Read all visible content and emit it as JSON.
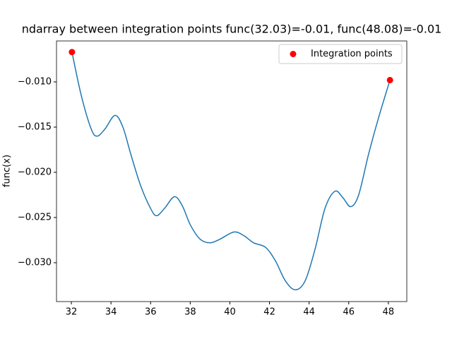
{
  "chart_data": {
    "type": "line",
    "title": "ndarray between integration points func(32.03)=-0.01, func(48.08)=-0.01",
    "y_label": "func(x)",
    "x": [
      32.03,
      32.5,
      33.0,
      33.3,
      33.7,
      34.2,
      34.6,
      35.0,
      35.5,
      36.0,
      36.3,
      36.7,
      37.2,
      37.6,
      38.0,
      38.5,
      39.0,
      39.5,
      40.2,
      40.7,
      41.2,
      41.8,
      42.3,
      42.8,
      43.3,
      43.8,
      44.3,
      44.8,
      45.3,
      45.7,
      46.1,
      46.5,
      47.0,
      47.5,
      48.08
    ],
    "values": [
      -0.0067,
      -0.0115,
      -0.0152,
      -0.016,
      -0.0152,
      -0.0137,
      -0.015,
      -0.018,
      -0.0215,
      -0.024,
      -0.0248,
      -0.024,
      -0.0227,
      -0.0237,
      -0.0258,
      -0.0274,
      -0.0278,
      -0.0274,
      -0.0266,
      -0.027,
      -0.0278,
      -0.0283,
      -0.0298,
      -0.032,
      -0.033,
      -0.032,
      -0.0285,
      -0.024,
      -0.0221,
      -0.0228,
      -0.0238,
      -0.0225,
      -0.018,
      -0.014,
      -0.0098
    ],
    "color": "#1f77b4",
    "scatter": {
      "name": "Integration points",
      "color": "#ff0000",
      "x": [
        32.03,
        48.08
      ],
      "values": [
        -0.0067,
        -0.0098
      ]
    },
    "legend": "upper right",
    "xlim": [
      31.25,
      48.93
    ],
    "xticks": [
      32,
      34,
      36,
      38,
      40,
      42,
      44,
      46,
      48
    ],
    "ylim": [
      -0.0343,
      -0.00547
    ],
    "yticks": [
      {
        "value": -0.03,
        "label": "−0.030"
      },
      {
        "value": -0.025,
        "label": "−0.025"
      },
      {
        "value": -0.02,
        "label": "−0.020"
      },
      {
        "value": -0.015,
        "label": "−0.015"
      },
      {
        "value": -0.01,
        "label": "−0.010"
      }
    ]
  }
}
